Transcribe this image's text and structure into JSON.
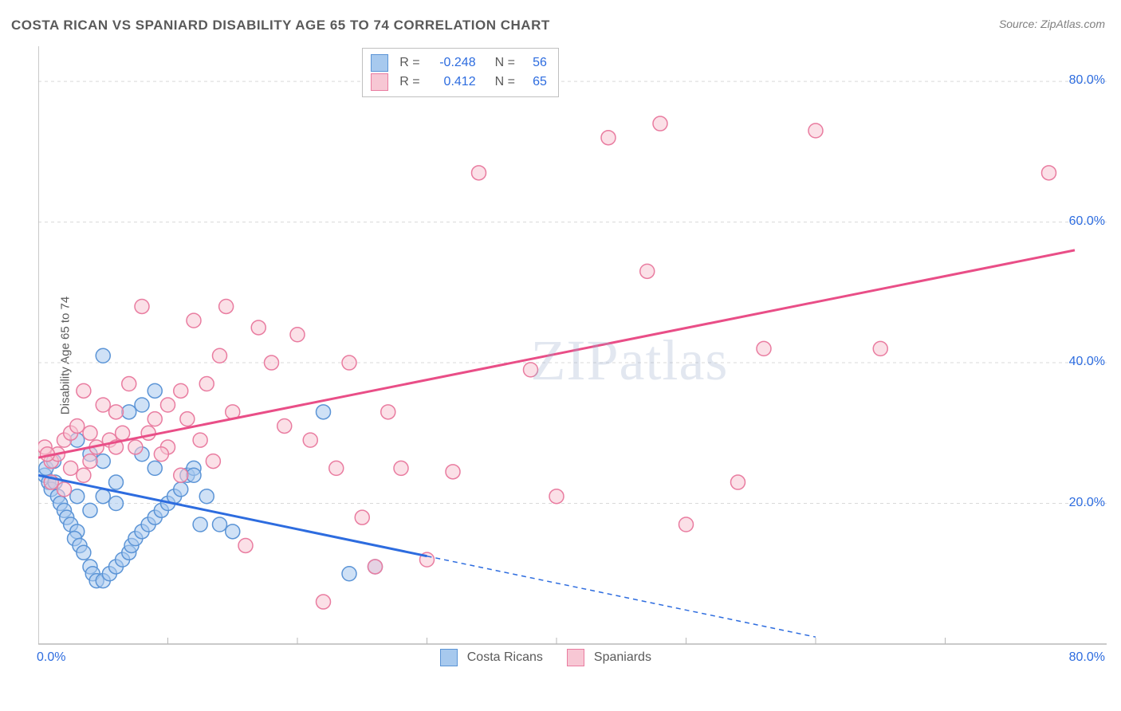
{
  "title": "COSTA RICAN VS SPANIARD DISABILITY AGE 65 TO 74 CORRELATION CHART",
  "source": "Source: ZipAtlas.com",
  "ylabel": "Disability Age 65 to 74",
  "watermark": "ZIPatlas",
  "chart": {
    "type": "scatter",
    "xlim": [
      0,
      80
    ],
    "ylim": [
      0,
      85
    ],
    "x_ticks": [
      0,
      80
    ],
    "x_tick_labels": [
      "0.0%",
      "80.0%"
    ],
    "y_ticks": [
      20,
      40,
      60,
      80
    ],
    "y_tick_labels": [
      "20.0%",
      "40.0%",
      "60.0%",
      "80.0%"
    ],
    "grid_color": "#d9d9d9",
    "axis_color": "#b8b8b8",
    "tick_label_color": "#2d6cdf",
    "background_color": "#ffffff",
    "marker_radius": 9,
    "marker_stroke_width": 1.5,
    "trend_line_width": 3
  },
  "series": [
    {
      "name": "Costa Ricans",
      "fill_color": "#a7c9ee",
      "stroke_color": "#5b94d6",
      "fill_opacity": 0.55,
      "trend_color": "#2d6cdf",
      "trend": {
        "x1": 0,
        "y1": 24,
        "x2_solid": 30,
        "y2_solid": 12.5,
        "x2_dash": 60,
        "y2_dash": 1
      },
      "points": [
        [
          0.5,
          24
        ],
        [
          0.8,
          23
        ],
        [
          1,
          22
        ],
        [
          0.6,
          25
        ],
        [
          1.2,
          26
        ],
        [
          1.3,
          23
        ],
        [
          1.5,
          21
        ],
        [
          1.7,
          20
        ],
        [
          2,
          19
        ],
        [
          2.2,
          18
        ],
        [
          2.5,
          17
        ],
        [
          3,
          16
        ],
        [
          2.8,
          15
        ],
        [
          3.2,
          14
        ],
        [
          3.5,
          13
        ],
        [
          4,
          11
        ],
        [
          4.2,
          10
        ],
        [
          4.5,
          9
        ],
        [
          5,
          9
        ],
        [
          5.5,
          10
        ],
        [
          6,
          11
        ],
        [
          6.5,
          12
        ],
        [
          7,
          13
        ],
        [
          7.2,
          14
        ],
        [
          7.5,
          15
        ],
        [
          8,
          16
        ],
        [
          8.5,
          17
        ],
        [
          9,
          18
        ],
        [
          9.5,
          19
        ],
        [
          10,
          20
        ],
        [
          10.5,
          21
        ],
        [
          11,
          22
        ],
        [
          11.5,
          24
        ],
        [
          12,
          25
        ],
        [
          7,
          33
        ],
        [
          8,
          34
        ],
        [
          9,
          36
        ],
        [
          5,
          41
        ],
        [
          3,
          29
        ],
        [
          4,
          27
        ],
        [
          5,
          26
        ],
        [
          6,
          23
        ],
        [
          12.5,
          17
        ],
        [
          13,
          21
        ],
        [
          14,
          17
        ],
        [
          15,
          16
        ],
        [
          22,
          33
        ],
        [
          24,
          10
        ],
        [
          26,
          11
        ],
        [
          12,
          24
        ],
        [
          9,
          25
        ],
        [
          8,
          27
        ],
        [
          6,
          20
        ],
        [
          5,
          21
        ],
        [
          4,
          19
        ],
        [
          3,
          21
        ]
      ]
    },
    {
      "name": "Spaniards",
      "fill_color": "#f7c7d4",
      "stroke_color": "#e97ca0",
      "fill_opacity": 0.55,
      "trend_color": "#e94e87",
      "trend": {
        "x1": 0,
        "y1": 26.5,
        "x2": 80,
        "y2": 56
      },
      "points": [
        [
          0.5,
          28
        ],
        [
          1,
          26
        ],
        [
          1.5,
          27
        ],
        [
          2,
          29
        ],
        [
          2.5,
          30
        ],
        [
          3,
          31
        ],
        [
          3.5,
          36
        ],
        [
          4,
          26
        ],
        [
          5,
          34
        ],
        [
          6,
          33
        ],
        [
          7,
          37
        ],
        [
          8,
          48
        ],
        [
          9,
          32
        ],
        [
          10,
          28
        ],
        [
          11,
          24
        ],
        [
          12,
          46
        ],
        [
          13,
          37
        ],
        [
          14,
          41
        ],
        [
          14.5,
          48
        ],
        [
          15,
          33
        ],
        [
          16,
          14
        ],
        [
          17,
          45
        ],
        [
          18,
          40
        ],
        [
          19,
          31
        ],
        [
          20,
          44
        ],
        [
          21,
          29
        ],
        [
          22,
          6
        ],
        [
          23,
          25
        ],
        [
          24,
          40
        ],
        [
          25,
          18
        ],
        [
          26,
          11
        ],
        [
          27,
          33
        ],
        [
          28,
          25
        ],
        [
          30,
          12
        ],
        [
          32,
          24.5
        ],
        [
          34,
          67
        ],
        [
          38,
          39
        ],
        [
          40,
          21
        ],
        [
          44,
          72
        ],
        [
          47,
          53
        ],
        [
          48,
          74
        ],
        [
          50,
          17
        ],
        [
          54,
          23
        ],
        [
          56,
          42
        ],
        [
          60,
          73
        ],
        [
          65,
          42
        ],
        [
          78,
          67
        ],
        [
          1,
          23
        ],
        [
          2,
          22
        ],
        [
          2.5,
          25
        ],
        [
          3.5,
          24
        ],
        [
          4,
          30
        ],
        [
          4.5,
          28
        ],
        [
          5.5,
          29
        ],
        [
          6,
          28
        ],
        [
          6.5,
          30
        ],
        [
          7.5,
          28
        ],
        [
          8.5,
          30
        ],
        [
          9.5,
          27
        ],
        [
          10,
          34
        ],
        [
          11,
          36
        ],
        [
          11.5,
          32
        ],
        [
          12.5,
          29
        ],
        [
          13.5,
          26
        ],
        [
          0.7,
          27
        ]
      ]
    }
  ],
  "stats": [
    {
      "series": 0,
      "R": "-0.248",
      "N": "56"
    },
    {
      "series": 1,
      "R": "0.412",
      "N": "65"
    }
  ],
  "legend_bottom": [
    {
      "series": 0,
      "label": "Costa Ricans"
    },
    {
      "series": 1,
      "label": "Spaniards"
    }
  ]
}
